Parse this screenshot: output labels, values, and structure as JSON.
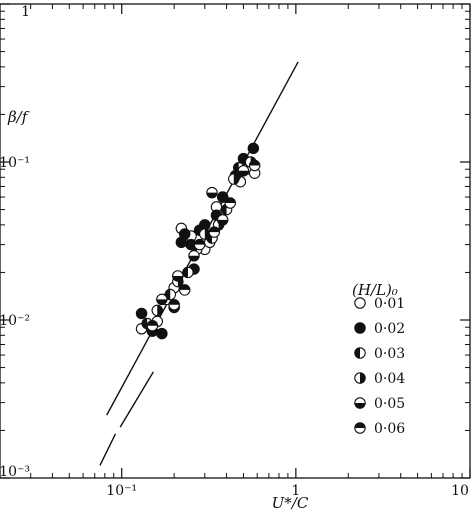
{
  "chart_data": {
    "type": "scatter",
    "title": "",
    "xlabel": "U*/C",
    "ylabel": "β/f",
    "xscale": "log",
    "yscale": "log",
    "xlim": [
      0.02,
      10
    ],
    "ylim": [
      0.001,
      1
    ],
    "grid": false,
    "legend_title": "(H/L)₀",
    "legend_position": "right",
    "x_ticks": [
      {
        "value": 0.1,
        "label": "10⁻¹"
      },
      {
        "value": 1,
        "label": "1"
      },
      {
        "value": 10,
        "label": "10"
      }
    ],
    "y_ticks": [
      {
        "value": 0.001,
        "label": "10⁻³"
      },
      {
        "value": 0.01,
        "label": "10⁻²"
      },
      {
        "value": 0.1,
        "label": "10⁻¹"
      },
      {
        "value": 1,
        "label": "1"
      }
    ],
    "fit_line": {
      "style": "solid",
      "x": [
        0.082,
        1.03
      ],
      "y": [
        0.0025,
        0.43
      ]
    },
    "fit_line_lower": {
      "style": "dashed",
      "segments": [
        {
          "x": [
            0.098,
            0.152
          ],
          "y": [
            0.0021,
            0.0047
          ]
        },
        {
          "x": [
            0.075,
            0.092
          ],
          "y": [
            0.0012,
            0.0019
          ]
        }
      ]
    },
    "series": [
      {
        "name": "0·01",
        "marker": "open",
        "points": [
          [
            0.13,
            0.0088
          ],
          [
            0.16,
            0.0098
          ],
          [
            0.2,
            0.016
          ],
          [
            0.22,
            0.038
          ],
          [
            0.25,
            0.034
          ],
          [
            0.3,
            0.028
          ],
          [
            0.35,
            0.052
          ],
          [
            0.48,
            0.075
          ],
          [
            0.52,
            0.09
          ],
          [
            0.58,
            0.085
          ],
          [
            0.18,
            0.0135
          ],
          [
            0.32,
            0.031
          ]
        ]
      },
      {
        "name": "0·02",
        "marker": "filled",
        "points": [
          [
            0.13,
            0.011
          ],
          [
            0.15,
            0.0085
          ],
          [
            0.17,
            0.0082
          ],
          [
            0.2,
            0.012
          ],
          [
            0.23,
            0.035
          ],
          [
            0.25,
            0.03
          ],
          [
            0.28,
            0.037
          ],
          [
            0.3,
            0.04
          ],
          [
            0.35,
            0.046
          ],
          [
            0.45,
            0.082
          ],
          [
            0.5,
            0.105
          ],
          [
            0.57,
            0.122
          ],
          [
            0.38,
            0.06
          ],
          [
            0.22,
            0.031
          ],
          [
            0.26,
            0.021
          ]
        ]
      },
      {
        "name": "0·03",
        "marker": "half-left",
        "points": [
          [
            0.14,
            0.0095
          ],
          [
            0.19,
            0.0145
          ],
          [
            0.24,
            0.02
          ],
          [
            0.27,
            0.028
          ],
          [
            0.33,
            0.033
          ],
          [
            0.4,
            0.05
          ],
          [
            0.47,
            0.092
          ]
        ]
      },
      {
        "name": "0·04",
        "marker": "half-right",
        "points": [
          [
            0.16,
            0.0115
          ],
          [
            0.21,
            0.0175
          ],
          [
            0.3,
            0.035
          ],
          [
            0.36,
            0.04
          ],
          [
            0.44,
            0.078
          ],
          [
            0.55,
            0.1
          ]
        ]
      },
      {
        "name": "0·05",
        "marker": "half-bottom",
        "points": [
          [
            0.17,
            0.0135
          ],
          [
            0.21,
            0.019
          ],
          [
            0.26,
            0.0255
          ],
          [
            0.33,
            0.064
          ],
          [
            0.38,
            0.043
          ],
          [
            0.5,
            0.088
          ]
        ]
      },
      {
        "name": "0·06",
        "marker": "half-top",
        "points": [
          [
            0.15,
            0.0092
          ],
          [
            0.2,
            0.0125
          ],
          [
            0.23,
            0.0155
          ],
          [
            0.28,
            0.03
          ],
          [
            0.34,
            0.036
          ],
          [
            0.42,
            0.055
          ],
          [
            0.58,
            0.095
          ]
        ]
      }
    ]
  }
}
